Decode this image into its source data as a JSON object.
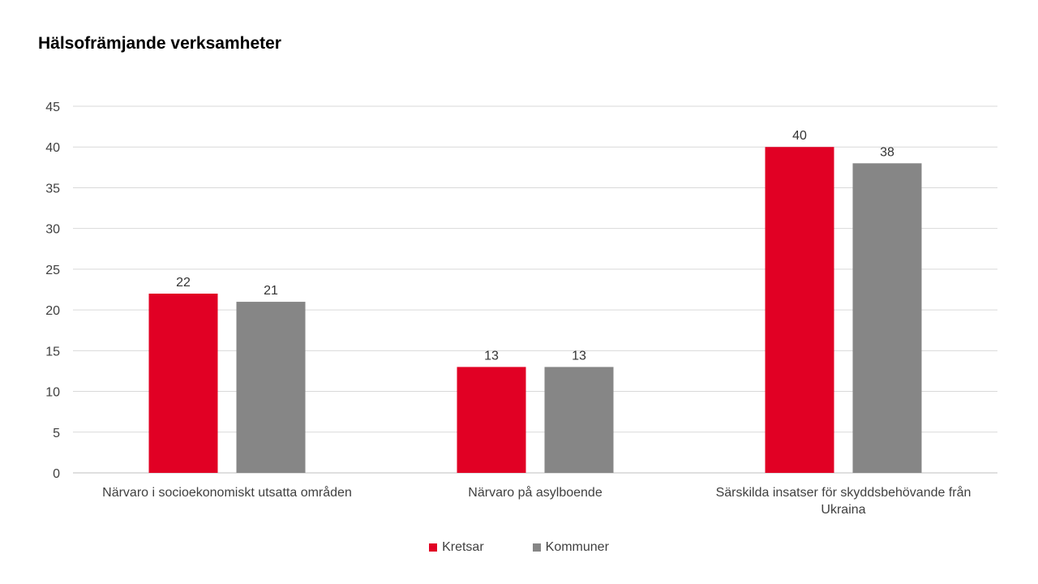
{
  "chart_data": {
    "type": "bar",
    "title": "Hälsofrämjande verksamheter",
    "categories": [
      "Närvaro i socioekonomiskt utsatta områden",
      "Närvaro på asylboende",
      [
        "Särskilda insatser för skyddsbehövande från",
        "Ukraina"
      ]
    ],
    "series": [
      {
        "name": "Kretsar",
        "values": [
          22,
          13,
          40
        ],
        "color": "#e10024"
      },
      {
        "name": "Kommuner",
        "values": [
          21,
          13,
          38
        ],
        "color": "#868686"
      }
    ],
    "ylim": [
      0,
      45
    ],
    "yticks": [
      0,
      5,
      10,
      15,
      20,
      25,
      30,
      35,
      40,
      45
    ],
    "grid": true,
    "legend": "bottom",
    "xlabel": "",
    "ylabel": ""
  }
}
